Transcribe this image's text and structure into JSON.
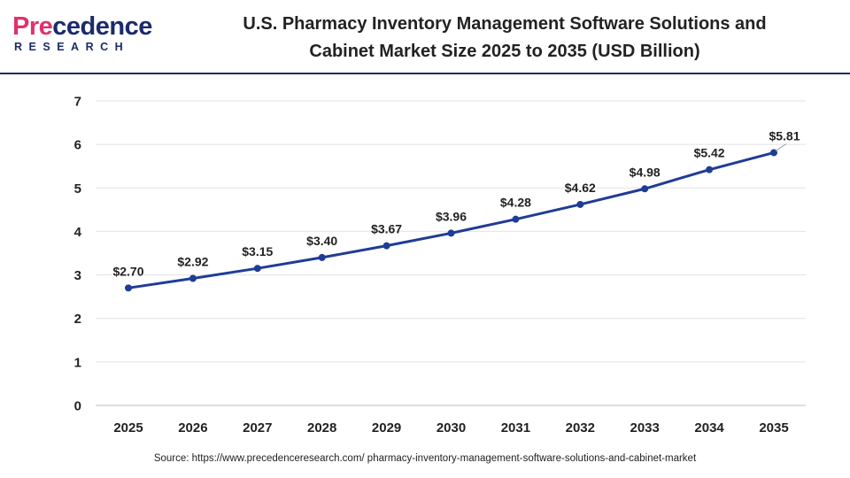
{
  "logo": {
    "word_prefix": "Pre",
    "word_suffix": "cedence",
    "subtitle": "RESEARCH"
  },
  "title_line1": "U.S. Pharmacy Inventory Management Software Solutions and",
  "title_line2": "Cabinet Market  Size 2025 to 2035 (USD Billion)",
  "source": "Source: https://www.precedenceresearch.com/ pharmacy-inventory-management-software-solutions-and-cabinet-market",
  "colors": {
    "line": "#1f3c96",
    "grid": "#e2e2e2",
    "brand_blue": "#1b2a6b",
    "brand_pink": "#e0316d"
  },
  "chart_data": {
    "type": "line",
    "title": "U.S. Pharmacy Inventory Management Software Solutions and Cabinet Market  Size 2025 to 2035 (USD Billion)",
    "xlabel": "",
    "ylabel": "",
    "categories": [
      "2025",
      "2026",
      "2027",
      "2028",
      "2029",
      "2030",
      "2031",
      "2032",
      "2033",
      "2034",
      "2035"
    ],
    "values": [
      2.7,
      2.92,
      3.15,
      3.4,
      3.67,
      3.96,
      4.28,
      4.62,
      4.98,
      5.42,
      5.81
    ],
    "value_labels": [
      "$2.70",
      "$2.92",
      "$3.15",
      "$3.40",
      "$3.67",
      "$3.96",
      "$4.28",
      "$4.62",
      "$4.98",
      "$5.42",
      "$5.81"
    ],
    "y_ticks": [
      "0",
      "1",
      "2",
      "3",
      "4",
      "5",
      "6",
      "7"
    ],
    "ylim": [
      0,
      7
    ],
    "grid": true,
    "legend": "none"
  }
}
